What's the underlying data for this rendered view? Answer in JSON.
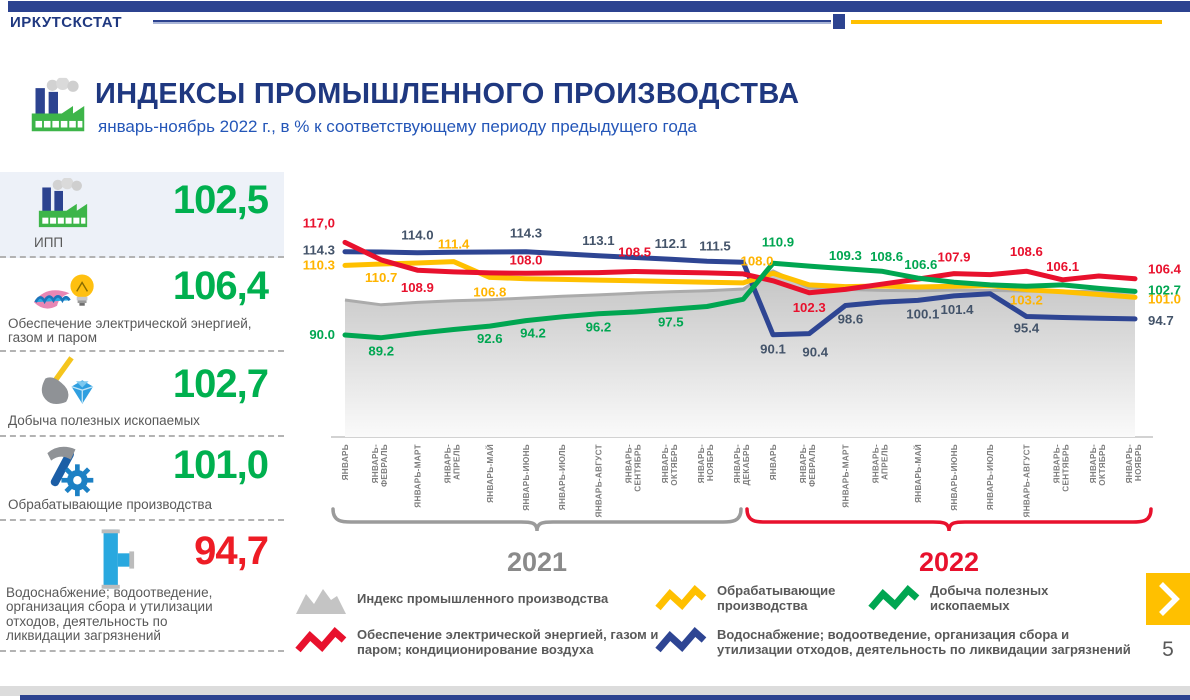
{
  "header": {
    "brand": "ИРКУТСКСТАТ"
  },
  "title": {
    "heading": "ИНДЕКСЫ ПРОМЫШЛЕННОГО ПРОИЗВОДСТВА",
    "subtitle": "январь-ноябрь 2022 г., в % к соответствующему периоду предыдущего года"
  },
  "sidebar": {
    "items": [
      {
        "label": "ИПП",
        "value": "102,5",
        "value_color": "#00b04f",
        "icon": "factory-icon"
      },
      {
        "label": "Обеспечение электрической энергией, газом и паром",
        "value": "106,4",
        "value_color": "#00b04f",
        "icon": "gas-and-bulb-icon"
      },
      {
        "label": "Добыча полезных  ископаемых",
        "value": "102,7",
        "value_color": "#00b04f",
        "icon": "shovel-diamond-icon"
      },
      {
        "label": "Обрабатывающие  производства",
        "value": "101,0",
        "value_color": "#00b04f",
        "icon": "hammer-gear-icon"
      },
      {
        "label": "Водоснабжение; водоотведение, организация сбора и утилизации отходов, деятельность по ликвидации загрязнений",
        "value": "94,7",
        "value_color": "#ee1c25",
        "icon": "water-pipe-icon"
      }
    ]
  },
  "chart_data": {
    "type": "line",
    "note": "YTD index, % to same period of previous year; unlabeled points estimated from pixel positions",
    "ylim": [
      85,
      120
    ],
    "x_groups": [
      {
        "year": "2021",
        "color": "#8a8a8a",
        "labels": [
          "ЯНВАРЬ",
          "ЯНВАРЬ-\nФЕВРАЛЬ",
          "ЯНВАРЬ-МАРТ",
          "ЯНВАРЬ-\nАПРЕЛЬ",
          "ЯНВАРЬ-МАЙ",
          "ЯНВАРЬ-ИЮНЬ",
          "ЯНВАРЬ-ИЮЛЬ",
          "ЯНВАРЬ-АВГУСТ",
          "ЯНВАРЬ-\nСЕНТЯБРЬ",
          "ЯНВАРЬ-\nОКТЯБРЬ",
          "ЯНВАРЬ-\nНОЯБРЬ",
          "ЯНВАРЬ-\nДЕКАБРЬ"
        ]
      },
      {
        "year": "2022",
        "color": "#e8112d",
        "labels": [
          "ЯНВАРЬ",
          "ЯНВАРЬ-\nФЕВРАЛЬ",
          "ЯНВАРЬ-МАРТ",
          "ЯНВАРЬ-\nАПРЕЛЬ",
          "ЯНВАРЬ-МАЙ",
          "ЯНВАРЬ-ИЮНЬ",
          "ЯНВАРЬ-ИЮЛЬ",
          "ЯНВАРЬ-АВГУСТ",
          "ЯНВАРЬ-\nСЕНТЯБРЬ",
          "ЯНВАРЬ-\nОКТЯБРЬ",
          "ЯНВАРЬ-\nНОЯБРЬ"
        ]
      }
    ],
    "series": [
      {
        "key": "ipp",
        "name": "Индекс промышленного производства",
        "area": true,
        "z": 0,
        "color": "#ababab",
        "label_color": "#7f7f7f",
        "values": [
          100.2,
          98.8,
          99.5,
          100.0,
          100.3,
          100.8,
          101.3,
          101.7,
          102.2,
          102.6,
          102.9,
          103.4,
          108.7,
          103.7,
          103.3,
          103.0,
          102.9,
          103.1,
          103.0,
          102.8,
          102.8,
          102.6,
          102.5
        ],
        "labels": []
      },
      {
        "key": "water",
        "name": "Водоснабжение; водоотведение, организация сбора и утилизации отходов, деятельность по ликвидации загрязнений",
        "z": 1,
        "color": "#2e4593",
        "label_color": "#44546a",
        "values": [
          114.3,
          114.2,
          114.0,
          114.1,
          114.2,
          114.3,
          113.7,
          113.1,
          112.6,
          112.1,
          111.5,
          111.2,
          90.1,
          90.4,
          98.6,
          99.6,
          100.1,
          101.4,
          102.0,
          95.4,
          95.1,
          94.9,
          94.7
        ],
        "labels": [
          {
            "i": 0,
            "t": "114.3",
            "dx": -10,
            "dy": 3,
            "a": "e"
          },
          {
            "i": 2,
            "t": "114.0",
            "dy": -13
          },
          {
            "i": 5,
            "t": "114.3",
            "dy": -14
          },
          {
            "i": 7,
            "t": "113.1",
            "dy": -11
          },
          {
            "i": 9,
            "t": "112.1",
            "dy": -11
          },
          {
            "i": 10,
            "t": "111.5",
            "dx": 8,
            "dy": -11
          },
          {
            "i": 12,
            "t": "90.1",
            "dy": 19
          },
          {
            "i": 13,
            "t": "90.4",
            "dx": 6,
            "dy": 23
          },
          {
            "i": 14,
            "t": "98.6",
            "dx": 5,
            "dy": 18
          },
          {
            "i": 16,
            "t": "100.1",
            "dx": 5,
            "dy": 18
          },
          {
            "i": 17,
            "t": "101.4",
            "dx": 3,
            "dy": 18
          },
          {
            "i": 19,
            "t": "95.4",
            "dy": 16
          },
          {
            "i": 22,
            "t": "94.7",
            "dx": 13,
            "dy": 6,
            "a": "s"
          }
        ]
      },
      {
        "key": "manufacturing",
        "name": "Обрабатывающие производства",
        "z": 2,
        "color": "#ffc000",
        "label_color": "#ffb400",
        "values": [
          110.3,
          110.7,
          111.0,
          111.4,
          106.8,
          106.4,
          106.2,
          106.0,
          105.8,
          105.6,
          105.4,
          105.2,
          108.0,
          104.6,
          104.1,
          104.3,
          104.0,
          104.2,
          104.4,
          103.2,
          102.6,
          101.8,
          101.0
        ],
        "labels": [
          {
            "i": 0,
            "t": "110.3",
            "dx": -10,
            "dy": 4,
            "a": "e"
          },
          {
            "i": 1,
            "t": "110.7",
            "dy": 18
          },
          {
            "i": 3,
            "t": "111.4",
            "dy": -13
          },
          {
            "i": 4,
            "t": "106.8",
            "dy": 19
          },
          {
            "i": 12,
            "t": "108.0",
            "dx": -16,
            "dy": -8
          },
          {
            "i": 19,
            "t": "103.2",
            "dy": 15
          },
          {
            "i": 22,
            "t": "101.0",
            "dx": 13,
            "dy": 6,
            "a": "s"
          }
        ]
      },
      {
        "key": "electricity",
        "name": "Обеспечение электрической энергией, газом и паром; кондиционирование воздуха",
        "z": 3,
        "color": "#e8112d",
        "label_color": "#e8112d",
        "values": [
          117.0,
          111.9,
          108.9,
          108.4,
          108.1,
          108.0,
          108.1,
          108.2,
          108.5,
          108.3,
          108.1,
          107.8,
          105.8,
          102.3,
          103.3,
          104.8,
          106.3,
          107.9,
          107.6,
          108.6,
          106.1,
          107.2,
          106.4
        ],
        "labels": [
          {
            "i": 0,
            "t": "117,0",
            "dx": -10,
            "dy": -15,
            "a": "e"
          },
          {
            "i": 2,
            "t": "108.9",
            "dy": 22
          },
          {
            "i": 5,
            "t": "108.0",
            "dy": -9
          },
          {
            "i": 8,
            "t": "108.5",
            "dy": -15
          },
          {
            "i": 13,
            "t": "102.3",
            "dy": 19
          },
          {
            "i": 17,
            "t": "107.9",
            "dy": -12
          },
          {
            "i": 19,
            "t": "108.6",
            "dy": -15
          },
          {
            "i": 20,
            "t": "106.1",
            "dy": -9
          },
          {
            "i": 22,
            "t": "106.4",
            "dx": 13,
            "dy": -5,
            "a": "s"
          }
        ]
      },
      {
        "key": "mining",
        "name": "Добыча полезных ископаемых",
        "z": 4,
        "color": "#00a651",
        "label_color": "#00a651",
        "values": [
          90.0,
          89.2,
          90.5,
          91.6,
          92.6,
          94.2,
          95.3,
          96.2,
          96.7,
          97.5,
          98.3,
          100.4,
          110.9,
          110.1,
          109.3,
          108.6,
          106.6,
          105.4,
          104.6,
          104.2,
          104.6,
          103.6,
          102.7
        ],
        "labels": [
          {
            "i": 0,
            "t": "90.0",
            "dx": -10,
            "dy": 4,
            "a": "e"
          },
          {
            "i": 1,
            "t": "89.2",
            "dy": 18
          },
          {
            "i": 4,
            "t": "92.6",
            "dy": 17
          },
          {
            "i": 5,
            "t": "94.2",
            "dx": 7,
            "dy": 17
          },
          {
            "i": 7,
            "t": "96.2",
            "dy": 18
          },
          {
            "i": 9,
            "t": "97.5",
            "dy": 17
          },
          {
            "i": 12,
            "t": "110.9",
            "dx": 5,
            "dy": -17
          },
          {
            "i": 14,
            "t": "109.3",
            "dy": -9
          },
          {
            "i": 15,
            "t": "108.6",
            "dx": 5,
            "dy": -10
          },
          {
            "i": 16,
            "t": "106.6",
            "dx": 3,
            "dy": -9
          },
          {
            "i": 22,
            "t": "102.7",
            "dx": 13,
            "dy": 3,
            "a": "s"
          }
        ]
      }
    ]
  },
  "legend": {
    "items": [
      {
        "label": "Индекс промышленного производства",
        "color": "#c4c4c4",
        "swatch": "area"
      },
      {
        "label": "Обрабатывающие производства",
        "color": "#ffc000",
        "swatch": "line"
      },
      {
        "label": "Добыча полезных ископаемых",
        "color": "#00a651",
        "swatch": "line"
      },
      {
        "label": "Обеспечение электрической энергией, газом и паром; кондиционирование воздуха",
        "color": "#e8112d",
        "swatch": "line"
      },
      {
        "label": "Водоснабжение; водоотведение, организация сбора и утилизации отходов, деятельность по ликвидации загрязнений",
        "color": "#2e4593",
        "swatch": "line"
      }
    ]
  },
  "pagination": {
    "page": "5"
  }
}
